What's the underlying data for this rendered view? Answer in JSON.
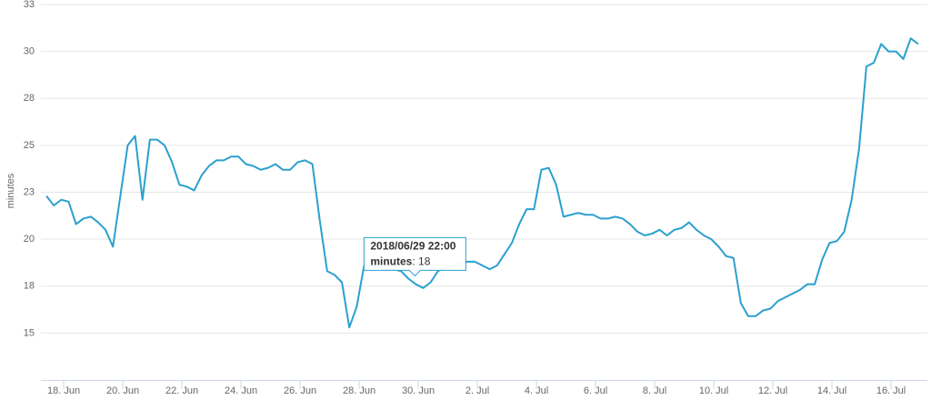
{
  "chart_data": {
    "type": "line",
    "y_label": "minutes",
    "xlim": [
      "2018/06/17 05:30",
      "2018/07/17 05:30"
    ],
    "ylim": [
      12.5,
      32.5
    ],
    "yticks": [
      15,
      {
        "value": 17.5,
        "label": "18"
      },
      20,
      {
        "value": 22.5,
        "label": "23"
      },
      25,
      {
        "value": 27.5,
        "label": "28"
      },
      30,
      {
        "value": 32.5,
        "label": "33"
      }
    ],
    "xticks": [
      {
        "value": "2018/06/18 00:00",
        "label": "18. Jun"
      },
      {
        "value": "2018/06/20 00:00",
        "label": "20. Jun"
      },
      {
        "value": "2018/06/22 00:00",
        "label": "22. Jun"
      },
      {
        "value": "2018/06/24 00:00",
        "label": "24. Jun"
      },
      {
        "value": "2018/06/26 00:00",
        "label": "26. Jun"
      },
      {
        "value": "2018/06/28 00:00",
        "label": "28. Jun"
      },
      {
        "value": "2018/06/30 00:00",
        "label": "30. Jun"
      },
      {
        "value": "2018/07/02 00:00",
        "label": "2. Jul"
      },
      {
        "value": "2018/07/04 00:00",
        "label": "4. Jul"
      },
      {
        "value": "2018/07/06 00:00",
        "label": "6. Jul"
      },
      {
        "value": "2018/07/08 00:00",
        "label": "8. Jul"
      },
      {
        "value": "2018/07/10 00:00",
        "label": "10. Jul"
      },
      {
        "value": "2018/07/12 00:00",
        "label": "12. Jul"
      },
      {
        "value": "2018/07/14 00:00",
        "label": "14. Jul"
      },
      {
        "value": "2018/07/16 00:00",
        "label": "16. Jul"
      }
    ],
    "grid": true,
    "x": [
      "2018/06/17 10:00",
      "2018/06/17 16:00",
      "2018/06/17 22:00",
      "2018/06/18 04:00",
      "2018/06/18 10:00",
      "2018/06/18 16:00",
      "2018/06/18 22:00",
      "2018/06/19 04:00",
      "2018/06/19 10:00",
      "2018/06/19 16:00",
      "2018/06/19 22:00",
      "2018/06/20 04:00",
      "2018/06/20 10:00",
      "2018/06/20 16:00",
      "2018/06/20 22:00",
      "2018/06/21 04:00",
      "2018/06/21 10:00",
      "2018/06/21 16:00",
      "2018/06/21 22:00",
      "2018/06/22 04:00",
      "2018/06/22 10:00",
      "2018/06/22 16:00",
      "2018/06/22 22:00",
      "2018/06/23 04:00",
      "2018/06/23 10:00",
      "2018/06/23 16:00",
      "2018/06/23 22:00",
      "2018/06/24 04:00",
      "2018/06/24 10:00",
      "2018/06/24 16:00",
      "2018/06/24 22:00",
      "2018/06/25 04:00",
      "2018/06/25 10:00",
      "2018/06/25 16:00",
      "2018/06/25 22:00",
      "2018/06/26 04:00",
      "2018/06/26 10:00",
      "2018/06/26 16:00",
      "2018/06/26 22:00",
      "2018/06/27 04:00",
      "2018/06/27 10:00",
      "2018/06/27 16:00",
      "2018/06/27 22:00",
      "2018/06/28 04:00",
      "2018/06/28 10:00",
      "2018/06/28 16:00",
      "2018/06/28 22:00",
      "2018/06/29 04:00",
      "2018/06/29 10:00",
      "2018/06/29 16:00",
      "2018/06/29 22:00",
      "2018/06/30 04:00",
      "2018/06/30 10:00",
      "2018/06/30 16:00",
      "2018/06/30 22:00",
      "2018/07/01 04:00",
      "2018/07/01 10:00",
      "2018/07/01 16:00",
      "2018/07/01 22:00",
      "2018/07/02 04:00",
      "2018/07/02 10:00",
      "2018/07/02 16:00",
      "2018/07/02 22:00",
      "2018/07/03 04:00",
      "2018/07/03 10:00",
      "2018/07/03 16:00",
      "2018/07/03 22:00",
      "2018/07/04 04:00",
      "2018/07/04 10:00",
      "2018/07/04 16:00",
      "2018/07/04 22:00",
      "2018/07/05 04:00",
      "2018/07/05 10:00",
      "2018/07/05 16:00",
      "2018/07/05 22:00",
      "2018/07/06 04:00",
      "2018/07/06 10:00",
      "2018/07/06 16:00",
      "2018/07/06 22:00",
      "2018/07/07 04:00",
      "2018/07/07 10:00",
      "2018/07/07 16:00",
      "2018/07/07 22:00",
      "2018/07/08 04:00",
      "2018/07/08 10:00",
      "2018/07/08 16:00",
      "2018/07/08 22:00",
      "2018/07/09 04:00",
      "2018/07/09 10:00",
      "2018/07/09 16:00",
      "2018/07/09 22:00",
      "2018/07/10 04:00",
      "2018/07/10 10:00",
      "2018/07/10 16:00",
      "2018/07/10 22:00",
      "2018/07/11 04:00",
      "2018/07/11 10:00",
      "2018/07/11 16:00",
      "2018/07/11 22:00",
      "2018/07/12 04:00",
      "2018/07/12 10:00",
      "2018/07/12 16:00",
      "2018/07/12 22:00",
      "2018/07/13 04:00",
      "2018/07/13 10:00",
      "2018/07/13 16:00",
      "2018/07/13 22:00",
      "2018/07/14 04:00",
      "2018/07/14 10:00",
      "2018/07/14 16:00",
      "2018/07/14 22:00",
      "2018/07/15 04:00",
      "2018/07/15 10:00",
      "2018/07/15 16:00",
      "2018/07/15 22:00",
      "2018/07/16 04:00",
      "2018/07/16 10:00",
      "2018/07/16 16:00",
      "2018/07/16 22:00"
    ],
    "series": [
      {
        "name": "minutes",
        "color": "#2ba0cf",
        "values": [
          22.3,
          21.8,
          22.1,
          22.0,
          20.8,
          21.1,
          21.2,
          20.9,
          20.5,
          19.6,
          22.3,
          25.0,
          25.5,
          22.1,
          25.3,
          25.3,
          25.0,
          24.1,
          22.9,
          22.8,
          22.6,
          23.4,
          23.9,
          24.2,
          24.2,
          24.4,
          24.4,
          24.0,
          23.9,
          23.7,
          23.8,
          24.0,
          23.7,
          23.7,
          24.1,
          24.2,
          24.0,
          21.0,
          18.3,
          18.1,
          17.7,
          15.3,
          16.4,
          18.6,
          18.6,
          18.5,
          18.4,
          18.4,
          18.3,
          17.9,
          17.6,
          17.4,
          17.7,
          18.3,
          18.5,
          18.6,
          18.7,
          18.8,
          18.8,
          18.6,
          18.4,
          18.6,
          19.2,
          19.8,
          20.8,
          21.6,
          21.6,
          23.7,
          23.8,
          22.9,
          21.2,
          21.3,
          21.4,
          21.3,
          21.3,
          21.1,
          21.1,
          21.2,
          21.1,
          20.8,
          20.4,
          20.2,
          20.3,
          20.5,
          20.2,
          20.5,
          20.6,
          20.9,
          20.5,
          20.2,
          20.0,
          19.6,
          19.1,
          19.0,
          16.6,
          15.9,
          15.9,
          16.2,
          16.3,
          16.7,
          16.9,
          17.1,
          17.3,
          17.6,
          17.6,
          18.9,
          19.8,
          19.9,
          20.4,
          22.1,
          24.8,
          29.2,
          29.4,
          30.4,
          30.0,
          30.0,
          29.6,
          30.7,
          30.4
        ]
      }
    ],
    "tooltip": {
      "x": "2018/06/29 22:00",
      "value": 18
    }
  }
}
